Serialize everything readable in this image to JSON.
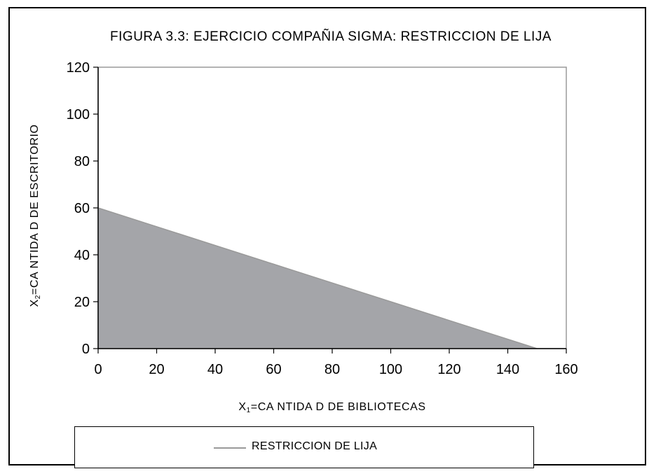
{
  "chart_data": {
    "type": "area",
    "title": "FIGURA 3.3:  EJERCICIO COMPAÑIA SIGMA: RESTRICCION DE LIJA",
    "xlabel": {
      "prefix": "X",
      "sub": "1",
      "text": "=CA NTIDA D DE BIBLIOTECAS"
    },
    "ylabel": {
      "prefix": "X",
      "sub": "2",
      "text": "=CA NTIDA D DE ESCRITORIO"
    },
    "xlim": [
      0,
      160
    ],
    "ylim": [
      0,
      120
    ],
    "x_ticks": [
      "0",
      "20",
      "40",
      "60",
      "80",
      "100",
      "120",
      "140",
      "160"
    ],
    "y_ticks": [
      "0",
      "20",
      "40",
      "60",
      "80",
      "100",
      "120"
    ],
    "grid": false,
    "legend_position": "bottom",
    "series": [
      {
        "name": "RESTRICCION DE LIJA",
        "x": [
          0,
          20,
          40,
          60,
          80,
          100,
          120,
          140,
          150
        ],
        "y": [
          60,
          52,
          44,
          36,
          28,
          20,
          12,
          4,
          0
        ],
        "fill_color": "#a4a5a9",
        "line_color": "#9a9a9a"
      }
    ],
    "plot_border_color": "#9a9a9a"
  }
}
